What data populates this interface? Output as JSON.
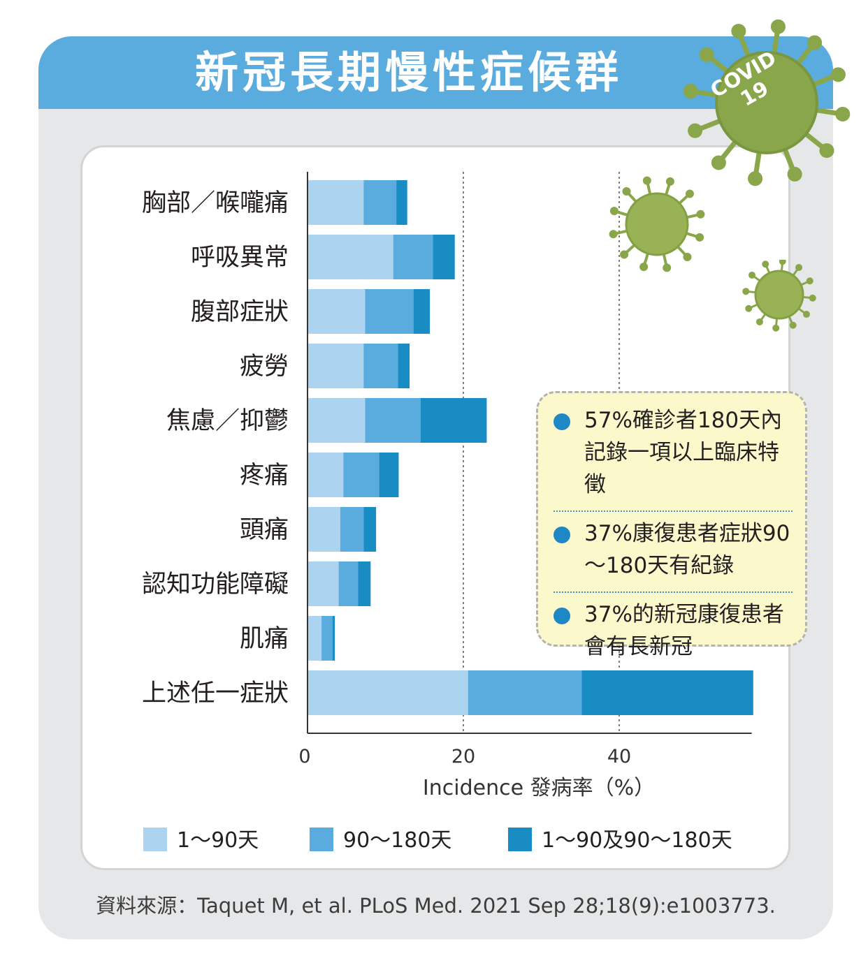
{
  "title": "新冠長期慢性症候群",
  "badge": {
    "line1": "COVID",
    "line2": "19"
  },
  "source": "資料來源：Taquet M, et al. PLoS Med. 2021 Sep 28;18(9):e1003773.",
  "notes": [
    "57%確診者180天內記錄一項以上臨床特徵",
    "37%康復患者症狀90～180天有紀錄",
    "37%的新冠康復患者會有長新冠"
  ],
  "colors": {
    "title_bar": "#5aacdf",
    "series_1": "#acd3ef",
    "series_2": "#5aacdf",
    "series_3": "#1a8cc4",
    "virus_green": "#8aa64a"
  },
  "chart_data": {
    "type": "bar",
    "orientation": "horizontal",
    "stacked": true,
    "categories": [
      "胸部／喉嚨痛",
      "呼吸異常",
      "腹部症狀",
      "疲勞",
      "焦慮／抑鬱",
      "疼痛",
      "頭痛",
      "認知功能障礙",
      "肌痛",
      "上述任一症狀"
    ],
    "series": [
      {
        "name": "1～90天",
        "values": [
          7.2,
          11.0,
          7.4,
          7.2,
          7.4,
          4.6,
          4.2,
          4.0,
          1.8,
          20.6
        ]
      },
      {
        "name": "90～180天",
        "values": [
          4.2,
          5.1,
          6.2,
          4.4,
          7.1,
          4.6,
          3.0,
          2.5,
          1.4,
          14.6
        ]
      },
      {
        "name": "1～90及90～180天",
        "values": [
          1.4,
          2.8,
          2.1,
          1.5,
          8.5,
          2.5,
          1.6,
          1.6,
          0.3,
          22.0
        ]
      }
    ],
    "xlabel": "Incidence 發病率（%）",
    "ylabel": "",
    "xlim": [
      0,
      57
    ],
    "xticks": [
      0,
      20,
      40
    ],
    "gridlines": [
      20,
      40
    ],
    "grid_style": "dotted vertical",
    "legend_position": "bottom"
  }
}
